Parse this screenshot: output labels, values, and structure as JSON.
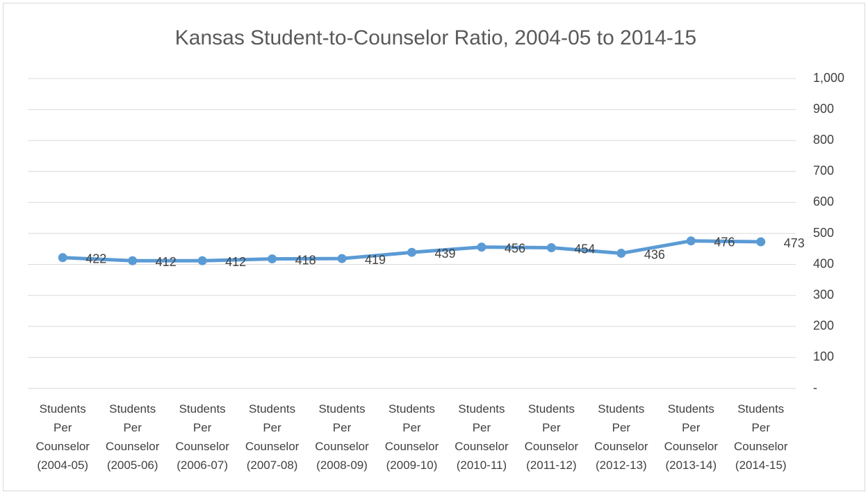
{
  "chart_data": {
    "type": "line",
    "title": "Kansas Student-to-Counselor Ratio, 2004-05 to 2014-15",
    "categories": [
      "Students Per Counselor (2004-05)",
      "Students Per Counselor (2005-06)",
      "Students Per Counselor (2006-07)",
      "Students Per Counselor (2007-08)",
      "Students Per Counselor (2008-09)",
      "Students Per Counselor (2009-10)",
      "Students Per Counselor (2010-11)",
      "Students Per Counselor (2011-12)",
      "Students Per Counselor (2012-13)",
      "Students Per Counselor (2013-14)",
      "Students Per Counselor (2014-15)"
    ],
    "values": [
      422,
      412,
      412,
      418,
      419,
      439,
      456,
      454,
      436,
      476,
      473
    ],
    "color": "#5b9bd5",
    "ylim": [
      0,
      1000
    ],
    "yticks": [
      {
        "value": 0,
        "label": "-"
      },
      100,
      200,
      300,
      400,
      500,
      600,
      700,
      800,
      900,
      {
        "value": 1000,
        "label": "1,000"
      }
    ],
    "grid": true
  }
}
